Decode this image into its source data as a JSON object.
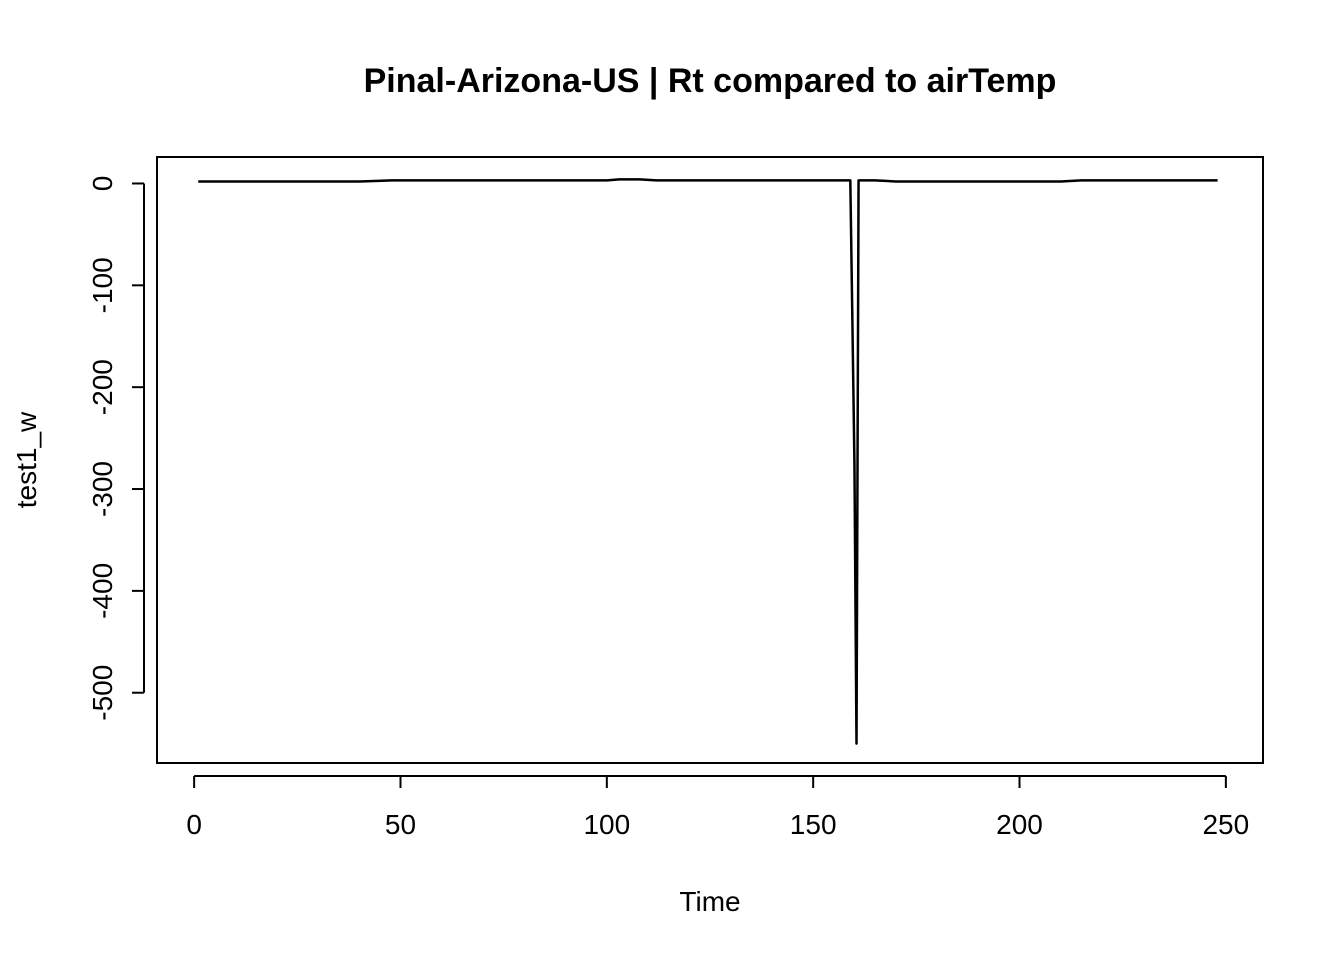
{
  "chart_data": {
    "type": "line",
    "title": "Pinal-Arizona-US | Rt compared to airTemp",
    "xlabel": "Time",
    "ylabel": "test1_w",
    "xlim": [
      -9,
      259
    ],
    "ylim": [
      -569,
      26
    ],
    "xticks": [
      0,
      50,
      100,
      150,
      200,
      250
    ],
    "yticks": [
      0,
      -100,
      -200,
      -300,
      -400,
      -500
    ],
    "grid": false,
    "legend": "none",
    "line_color": "#000000",
    "series": [
      {
        "x": [
          1,
          10,
          20,
          30,
          40,
          48,
          60,
          70,
          80,
          90,
          100,
          103,
          108,
          112,
          120,
          130,
          140,
          150,
          155,
          159,
          159.5,
          160,
          160.5,
          161,
          162,
          165,
          170,
          180,
          190,
          200,
          210,
          215,
          220,
          230,
          240,
          248
        ],
        "y": [
          2,
          2,
          2,
          2,
          2,
          3,
          3,
          3,
          3,
          3,
          3,
          4,
          4,
          3,
          3,
          3,
          3,
          3,
          3,
          3,
          -135,
          -275,
          -550,
          3,
          3,
          3,
          2,
          2,
          2,
          2,
          2,
          3,
          3,
          3,
          3,
          3
        ]
      }
    ]
  }
}
